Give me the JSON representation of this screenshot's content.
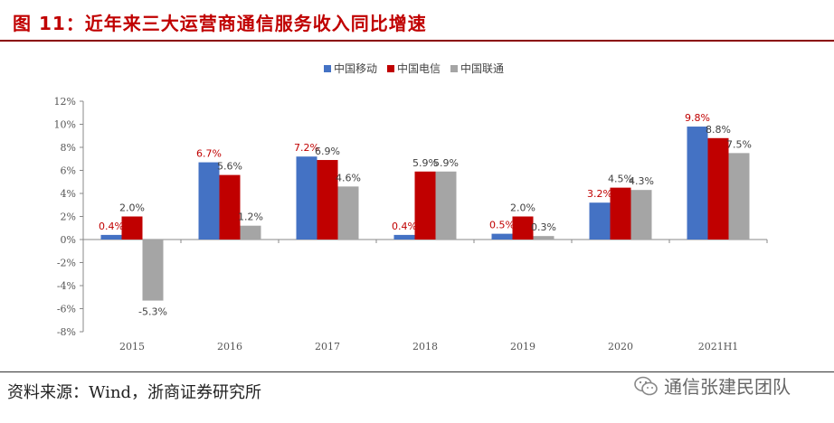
{
  "header": {
    "title": "图 11：近年来三大运营商通信服务收入同比增速"
  },
  "footer": {
    "source": "资料来源：Wind，浙商证券研究所",
    "watermark": "通信张建民团队"
  },
  "colors": {
    "title": "#c00000",
    "china_mobile": "#4472c4",
    "china_telecom": "#c00000",
    "china_unicom": "#a5a5a5",
    "label_red": "#c00000",
    "label_gray": "#404040"
  },
  "chart_data": {
    "type": "bar",
    "title": "",
    "xlabel": "",
    "ylabel": "",
    "ylim": [
      -8,
      12
    ],
    "yticks": [
      -8,
      -6,
      -4,
      -2,
      0,
      2,
      4,
      6,
      8,
      10,
      12
    ],
    "ytick_labels": [
      "-8%",
      "-6%",
      "-4%",
      "-2%",
      "0%",
      "2%",
      "4%",
      "6%",
      "8%",
      "10%",
      "12%"
    ],
    "categories": [
      "2015",
      "2016",
      "2017",
      "2018",
      "2019",
      "2020",
      "2021H1"
    ],
    "legend_position": "top-center",
    "series": [
      {
        "name": "中国移动",
        "color": "#4472c4",
        "label_color": "#c00000",
        "values": [
          0.4,
          6.7,
          7.2,
          0.4,
          0.5,
          3.2,
          9.8
        ],
        "labels": [
          "0.4%",
          "6.7%",
          "7.2%",
          "0.4%",
          "0.5%",
          "3.2%",
          "9.8%"
        ]
      },
      {
        "name": "中国电信",
        "color": "#c00000",
        "label_color": "#404040",
        "values": [
          2.0,
          5.6,
          6.9,
          5.9,
          2.0,
          4.5,
          8.8
        ],
        "labels": [
          "2.0%",
          "5.6%",
          "6.9%",
          "5.9%",
          "2.0%",
          "4.5%",
          "8.8%"
        ]
      },
      {
        "name": "中国联通",
        "color": "#a5a5a5",
        "label_color": "#404040",
        "values": [
          -5.3,
          1.2,
          4.6,
          5.9,
          0.3,
          4.3,
          7.5
        ],
        "labels": [
          "-5.3%",
          "1.2%",
          "4.6%",
          "5.9%",
          "0.3%",
          "4.3%",
          "7.5%"
        ]
      }
    ]
  }
}
